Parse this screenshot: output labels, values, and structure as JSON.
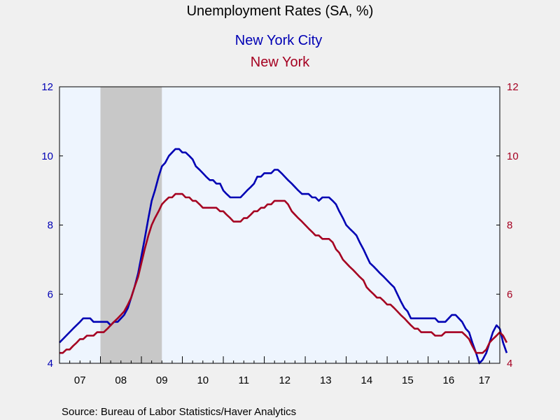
{
  "colors": {
    "page_background": "#f0f0f0",
    "plot_background": "#eef5fe",
    "recession_shading": "#c8c8c8",
    "nyc": "#0000b4",
    "nys": "#a50021"
  },
  "chart_data": {
    "type": "line",
    "title": "Unemployment Rates (SA, %)",
    "source": "Source:  Bureau of Labor Statistics/Haver Analytics",
    "x_axis": {
      "start": 2007.0,
      "end": 2017.75,
      "tick_labels": [
        "07",
        "08",
        "09",
        "10",
        "11",
        "12",
        "13",
        "14",
        "15",
        "16",
        "17"
      ]
    },
    "y_left": {
      "min": 4,
      "max": 12,
      "ticks": [
        4,
        6,
        8,
        10,
        12
      ]
    },
    "y_right": {
      "min": 4,
      "max": 12,
      "ticks": [
        4,
        6,
        8,
        10,
        12
      ]
    },
    "recession": {
      "start": 2008.0,
      "end": 2009.5
    },
    "series": [
      {
        "name": "New York City",
        "axis": "left",
        "points": [
          [
            2007.0,
            4.6
          ],
          [
            2007.33,
            5.0
          ],
          [
            2007.5,
            5.2
          ],
          [
            2007.58,
            5.3
          ],
          [
            2007.75,
            5.3
          ],
          [
            2007.83,
            5.2
          ],
          [
            2008.0,
            5.2
          ],
          [
            2008.17,
            5.2
          ],
          [
            2008.25,
            5.1
          ],
          [
            2008.33,
            5.2
          ],
          [
            2008.42,
            5.2
          ],
          [
            2008.5,
            5.3
          ],
          [
            2008.58,
            5.4
          ],
          [
            2008.67,
            5.6
          ],
          [
            2008.75,
            5.9
          ],
          [
            2008.83,
            6.2
          ],
          [
            2008.92,
            6.6
          ],
          [
            2009.0,
            7.1
          ],
          [
            2009.08,
            7.6
          ],
          [
            2009.17,
            8.2
          ],
          [
            2009.25,
            8.7
          ],
          [
            2009.33,
            9.0
          ],
          [
            2009.42,
            9.4
          ],
          [
            2009.5,
            9.7
          ],
          [
            2009.58,
            9.8
          ],
          [
            2009.67,
            10.0
          ],
          [
            2009.75,
            10.1
          ],
          [
            2009.83,
            10.2
          ],
          [
            2009.92,
            10.2
          ],
          [
            2010.0,
            10.1
          ],
          [
            2010.08,
            10.1
          ],
          [
            2010.17,
            10.0
          ],
          [
            2010.25,
            9.9
          ],
          [
            2010.33,
            9.7
          ],
          [
            2010.42,
            9.6
          ],
          [
            2010.5,
            9.5
          ],
          [
            2010.58,
            9.4
          ],
          [
            2010.67,
            9.3
          ],
          [
            2010.75,
            9.3
          ],
          [
            2010.83,
            9.2
          ],
          [
            2010.92,
            9.2
          ],
          [
            2011.0,
            9.0
          ],
          [
            2011.08,
            8.9
          ],
          [
            2011.17,
            8.8
          ],
          [
            2011.25,
            8.8
          ],
          [
            2011.33,
            8.8
          ],
          [
            2011.42,
            8.8
          ],
          [
            2011.5,
            8.9
          ],
          [
            2011.58,
            9.0
          ],
          [
            2011.67,
            9.1
          ],
          [
            2011.75,
            9.2
          ],
          [
            2011.83,
            9.4
          ],
          [
            2011.92,
            9.4
          ],
          [
            2012.0,
            9.5
          ],
          [
            2012.08,
            9.5
          ],
          [
            2012.17,
            9.5
          ],
          [
            2012.25,
            9.6
          ],
          [
            2012.33,
            9.6
          ],
          [
            2012.42,
            9.5
          ],
          [
            2012.5,
            9.4
          ],
          [
            2012.58,
            9.3
          ],
          [
            2012.67,
            9.2
          ],
          [
            2012.75,
            9.1
          ],
          [
            2012.83,
            9.0
          ],
          [
            2012.92,
            8.9
          ],
          [
            2013.0,
            8.9
          ],
          [
            2013.08,
            8.9
          ],
          [
            2013.17,
            8.8
          ],
          [
            2013.25,
            8.8
          ],
          [
            2013.33,
            8.7
          ],
          [
            2013.42,
            8.8
          ],
          [
            2013.5,
            8.8
          ],
          [
            2013.58,
            8.8
          ],
          [
            2013.67,
            8.7
          ],
          [
            2013.75,
            8.6
          ],
          [
            2013.83,
            8.4
          ],
          [
            2013.92,
            8.2
          ],
          [
            2014.0,
            8.0
          ],
          [
            2014.08,
            7.9
          ],
          [
            2014.17,
            7.8
          ],
          [
            2014.25,
            7.7
          ],
          [
            2014.33,
            7.5
          ],
          [
            2014.42,
            7.3
          ],
          [
            2014.5,
            7.1
          ],
          [
            2014.58,
            6.9
          ],
          [
            2014.67,
            6.8
          ],
          [
            2014.75,
            6.7
          ],
          [
            2014.83,
            6.6
          ],
          [
            2014.92,
            6.5
          ],
          [
            2015.0,
            6.4
          ],
          [
            2015.08,
            6.3
          ],
          [
            2015.17,
            6.2
          ],
          [
            2015.25,
            6.0
          ],
          [
            2015.33,
            5.8
          ],
          [
            2015.42,
            5.6
          ],
          [
            2015.5,
            5.5
          ],
          [
            2015.58,
            5.3
          ],
          [
            2015.67,
            5.3
          ],
          [
            2015.75,
            5.3
          ],
          [
            2015.83,
            5.3
          ],
          [
            2015.92,
            5.3
          ],
          [
            2016.0,
            5.3
          ],
          [
            2016.08,
            5.3
          ],
          [
            2016.17,
            5.3
          ],
          [
            2016.25,
            5.2
          ],
          [
            2016.33,
            5.2
          ],
          [
            2016.42,
            5.2
          ],
          [
            2016.5,
            5.3
          ],
          [
            2016.58,
            5.4
          ],
          [
            2016.67,
            5.4
          ],
          [
            2016.75,
            5.3
          ],
          [
            2016.83,
            5.2
          ],
          [
            2016.92,
            5.0
          ],
          [
            2017.0,
            4.9
          ],
          [
            2017.08,
            4.6
          ],
          [
            2017.17,
            4.3
          ],
          [
            2017.25,
            4.0
          ],
          [
            2017.33,
            4.1
          ],
          [
            2017.42,
            4.3
          ],
          [
            2017.5,
            4.6
          ],
          [
            2017.58,
            4.9
          ],
          [
            2017.67,
            5.1
          ],
          [
            2017.75,
            5.0
          ],
          [
            2017.83,
            4.6
          ],
          [
            2017.92,
            4.3
          ]
        ]
      },
      {
        "name": "New York",
        "axis": "right",
        "points": [
          [
            2007.0,
            4.3
          ],
          [
            2007.08,
            4.3
          ],
          [
            2007.17,
            4.4
          ],
          [
            2007.25,
            4.4
          ],
          [
            2007.33,
            4.5
          ],
          [
            2007.42,
            4.6
          ],
          [
            2007.5,
            4.7
          ],
          [
            2007.58,
            4.7
          ],
          [
            2007.67,
            4.8
          ],
          [
            2007.75,
            4.8
          ],
          [
            2007.83,
            4.8
          ],
          [
            2007.92,
            4.9
          ],
          [
            2008.0,
            4.9
          ],
          [
            2008.08,
            4.9
          ],
          [
            2008.17,
            5.0
          ],
          [
            2008.25,
            5.1
          ],
          [
            2008.33,
            5.2
          ],
          [
            2008.42,
            5.3
          ],
          [
            2008.5,
            5.4
          ],
          [
            2008.58,
            5.5
          ],
          [
            2008.67,
            5.7
          ],
          [
            2008.75,
            5.9
          ],
          [
            2008.83,
            6.2
          ],
          [
            2008.92,
            6.5
          ],
          [
            2009.0,
            6.9
          ],
          [
            2009.08,
            7.3
          ],
          [
            2009.17,
            7.7
          ],
          [
            2009.25,
            8.0
          ],
          [
            2009.33,
            8.2
          ],
          [
            2009.42,
            8.4
          ],
          [
            2009.5,
            8.6
          ],
          [
            2009.58,
            8.7
          ],
          [
            2009.67,
            8.8
          ],
          [
            2009.75,
            8.8
          ],
          [
            2009.83,
            8.9
          ],
          [
            2009.92,
            8.9
          ],
          [
            2010.0,
            8.9
          ],
          [
            2010.08,
            8.8
          ],
          [
            2010.17,
            8.8
          ],
          [
            2010.25,
            8.7
          ],
          [
            2010.33,
            8.7
          ],
          [
            2010.42,
            8.6
          ],
          [
            2010.5,
            8.5
          ],
          [
            2010.58,
            8.5
          ],
          [
            2010.67,
            8.5
          ],
          [
            2010.75,
            8.5
          ],
          [
            2010.83,
            8.5
          ],
          [
            2010.92,
            8.4
          ],
          [
            2011.0,
            8.4
          ],
          [
            2011.08,
            8.3
          ],
          [
            2011.17,
            8.2
          ],
          [
            2011.25,
            8.1
          ],
          [
            2011.33,
            8.1
          ],
          [
            2011.42,
            8.1
          ],
          [
            2011.5,
            8.2
          ],
          [
            2011.58,
            8.2
          ],
          [
            2011.67,
            8.3
          ],
          [
            2011.75,
            8.4
          ],
          [
            2011.83,
            8.4
          ],
          [
            2011.92,
            8.5
          ],
          [
            2012.0,
            8.5
          ],
          [
            2012.08,
            8.6
          ],
          [
            2012.17,
            8.6
          ],
          [
            2012.25,
            8.7
          ],
          [
            2012.33,
            8.7
          ],
          [
            2012.42,
            8.7
          ],
          [
            2012.5,
            8.7
          ],
          [
            2012.58,
            8.6
          ],
          [
            2012.67,
            8.4
          ],
          [
            2012.75,
            8.3
          ],
          [
            2012.83,
            8.2
          ],
          [
            2012.92,
            8.1
          ],
          [
            2013.0,
            8.0
          ],
          [
            2013.08,
            7.9
          ],
          [
            2013.17,
            7.8
          ],
          [
            2013.25,
            7.7
          ],
          [
            2013.33,
            7.7
          ],
          [
            2013.42,
            7.6
          ],
          [
            2013.5,
            7.6
          ],
          [
            2013.58,
            7.6
          ],
          [
            2013.67,
            7.5
          ],
          [
            2013.75,
            7.3
          ],
          [
            2013.83,
            7.2
          ],
          [
            2013.92,
            7.0
          ],
          [
            2014.0,
            6.9
          ],
          [
            2014.08,
            6.8
          ],
          [
            2014.17,
            6.7
          ],
          [
            2014.25,
            6.6
          ],
          [
            2014.33,
            6.5
          ],
          [
            2014.42,
            6.4
          ],
          [
            2014.5,
            6.2
          ],
          [
            2014.58,
            6.1
          ],
          [
            2014.67,
            6.0
          ],
          [
            2014.75,
            5.9
          ],
          [
            2014.83,
            5.9
          ],
          [
            2014.92,
            5.8
          ],
          [
            2015.0,
            5.7
          ],
          [
            2015.08,
            5.7
          ],
          [
            2015.17,
            5.6
          ],
          [
            2015.25,
            5.5
          ],
          [
            2015.33,
            5.4
          ],
          [
            2015.42,
            5.3
          ],
          [
            2015.5,
            5.2
          ],
          [
            2015.58,
            5.1
          ],
          [
            2015.67,
            5.0
          ],
          [
            2015.75,
            5.0
          ],
          [
            2015.83,
            4.9
          ],
          [
            2015.92,
            4.9
          ],
          [
            2016.0,
            4.9
          ],
          [
            2016.08,
            4.9
          ],
          [
            2016.17,
            4.8
          ],
          [
            2016.25,
            4.8
          ],
          [
            2016.33,
            4.8
          ],
          [
            2016.42,
            4.9
          ],
          [
            2016.5,
            4.9
          ],
          [
            2016.58,
            4.9
          ],
          [
            2016.67,
            4.9
          ],
          [
            2016.75,
            4.9
          ],
          [
            2016.83,
            4.9
          ],
          [
            2016.92,
            4.8
          ],
          [
            2017.0,
            4.7
          ],
          [
            2017.08,
            4.5
          ],
          [
            2017.17,
            4.3
          ],
          [
            2017.25,
            4.3
          ],
          [
            2017.33,
            4.3
          ],
          [
            2017.42,
            4.4
          ],
          [
            2017.5,
            4.6
          ],
          [
            2017.58,
            4.7
          ],
          [
            2017.67,
            4.8
          ],
          [
            2017.75,
            4.9
          ],
          [
            2017.83,
            4.8
          ],
          [
            2017.92,
            4.6
          ]
        ]
      }
    ]
  }
}
